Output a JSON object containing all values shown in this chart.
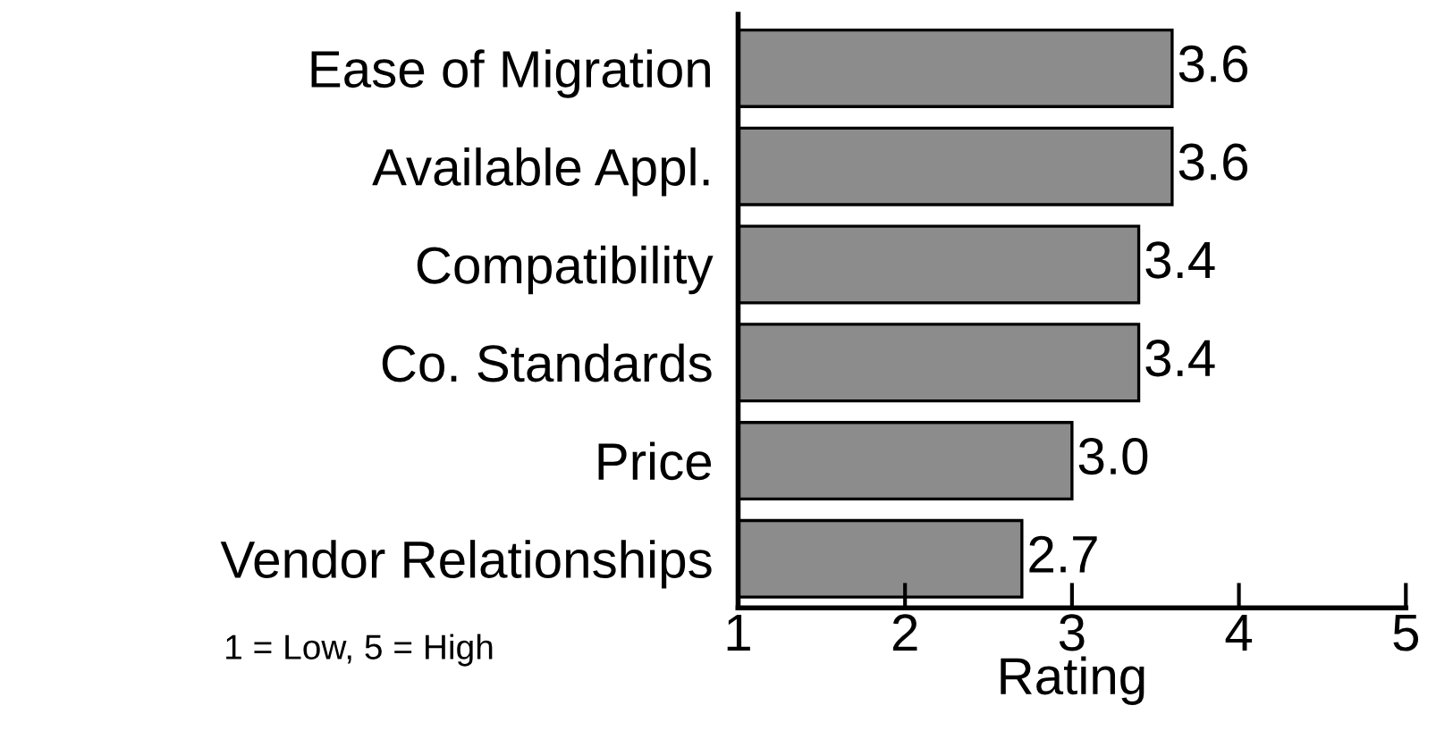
{
  "chart_data": {
    "type": "bar",
    "orientation": "horizontal",
    "categories": [
      "Ease of Migration",
      "Available Appl.",
      "Compatibility",
      "Co. Standards",
      "Price",
      "Vendor Relationships"
    ],
    "values": [
      3.6,
      3.6,
      3.4,
      3.4,
      3.0,
      2.7
    ],
    "color": "#8c8c8c",
    "xlim": [
      1,
      5
    ],
    "xticks": [
      1,
      2,
      3,
      4,
      5
    ],
    "xlabel": "Rating",
    "annotations": [
      "1 = Low, 5 = High"
    ],
    "value_labels": [
      "3.6",
      "3.6",
      "3.4",
      "3.4",
      "3.0",
      "2.7"
    ],
    "grid": false,
    "legend": false
  }
}
